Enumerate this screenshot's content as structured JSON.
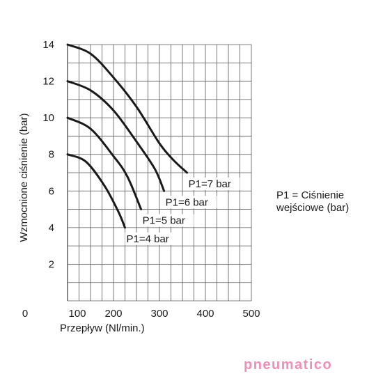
{
  "chart_data": {
    "type": "line",
    "title": "",
    "xlabel": "Przepływ (Nl/min.)",
    "ylabel": "Wzmocnione ciśnienie (bar)",
    "xlim": [
      100,
      500
    ],
    "ylim": [
      0,
      14
    ],
    "x_ticks": [
      "100",
      "200",
      "300",
      "400",
      "500"
    ],
    "y_ticks": [
      "2",
      "4",
      "6",
      "8",
      "10",
      "12",
      "14"
    ],
    "origin_label": "0",
    "grid": true,
    "series": [
      {
        "name": "P1=7 bar",
        "x": [
          100,
          150,
          200,
          250,
          300,
          330,
          360
        ],
        "y": [
          14,
          13.5,
          12.2,
          10.6,
          8.6,
          7.7,
          7
        ]
      },
      {
        "name": "P1=6 bar",
        "x": [
          100,
          150,
          200,
          250,
          290,
          310
        ],
        "y": [
          12,
          11.5,
          10.4,
          8.7,
          7.2,
          6
        ]
      },
      {
        "name": "P1=5 bar",
        "x": [
          100,
          150,
          200,
          230,
          260
        ],
        "y": [
          10,
          9.4,
          7.9,
          6.8,
          5
        ]
      },
      {
        "name": "P1=4 bar",
        "x": [
          100,
          140,
          180,
          210,
          225
        ],
        "y": [
          8,
          7.6,
          6.3,
          4.9,
          4
        ]
      }
    ],
    "annotation": {
      "line1": "P1 = Ciśnienie",
      "line2": "wejściowe (bar)"
    },
    "line_color": "#1a1a1a"
  },
  "logo": {
    "text": "pneumatico",
    "color": "#ee8fb6"
  }
}
